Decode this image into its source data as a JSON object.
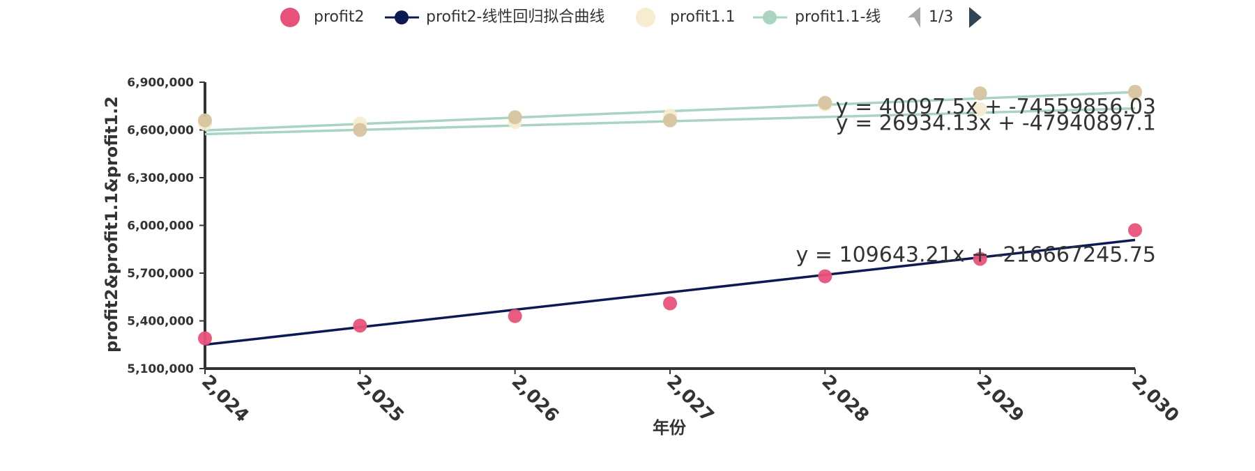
{
  "chart_data": {
    "type": "scatter",
    "xlabel": "年份",
    "ylabel": "profit2&profit1.1&profit1.2",
    "x": [
      2024,
      2025,
      2026,
      2027,
      2028,
      2029,
      2030
    ],
    "x_tick_labels": [
      "2,024",
      "2,025",
      "2,026",
      "2,027",
      "2,028",
      "2,029",
      "2,030"
    ],
    "xlim": [
      2024,
      2030
    ],
    "ylim": [
      5100000,
      6900000
    ],
    "y_ticks": [
      5100000,
      5400000,
      5700000,
      6000000,
      6300000,
      6600000,
      6900000
    ],
    "y_tick_labels": [
      "5,100,000",
      "5,400,000",
      "5,700,000",
      "6,000,000",
      "6,300,000",
      "6,600,000",
      "6,900,000"
    ],
    "grid": false,
    "legend_position": "top-center",
    "legend": {
      "items": [
        {
          "label": "profit2",
          "kind": "dot",
          "color": "#e8527a"
        },
        {
          "label": "profit2-线性回归拟合曲线",
          "kind": "line",
          "color": "#0b1a52"
        },
        {
          "label": "profit1.1",
          "kind": "dot",
          "color": "#f6ecd0"
        },
        {
          "label": "profit1.1-线",
          "kind": "line",
          "color": "#a9d4c2"
        }
      ],
      "page_indicator": "1/3"
    },
    "series": [
      {
        "name": "profit2",
        "type": "scatter",
        "color": "#e8527a",
        "values": [
          5290000,
          5370000,
          5430000,
          5510000,
          5680000,
          5790000,
          5970000
        ]
      },
      {
        "name": "profit2-线性回归拟合曲线",
        "type": "line",
        "color": "#0b1a52",
        "slope": 109643.21,
        "intercept": -216667245.75,
        "equation": "y = 109643.21x + -216667245.75"
      },
      {
        "name": "profit1.1",
        "type": "scatter",
        "color": "#f6ecd0",
        "values": [
          6640000,
          6640000,
          6650000,
          6690000,
          6760000,
          6730000,
          6820000
        ]
      },
      {
        "name": "profit1.1-线",
        "type": "line",
        "color": "#a9d4c2",
        "slope": 26934.13,
        "intercept": -47940897.1,
        "equation": "y = 26934.13x + -47940897.1"
      },
      {
        "type": "scatter",
        "color": "#d6c4a0",
        "values": [
          6660000,
          6600000,
          6680000,
          6660000,
          6770000,
          6830000,
          6840000
        ]
      },
      {
        "type": "line",
        "color": "#a9d4c2",
        "slope": 40097.5,
        "intercept": -74559856.03,
        "equation": "y = 40097.5x + -74559856.03"
      }
    ]
  }
}
